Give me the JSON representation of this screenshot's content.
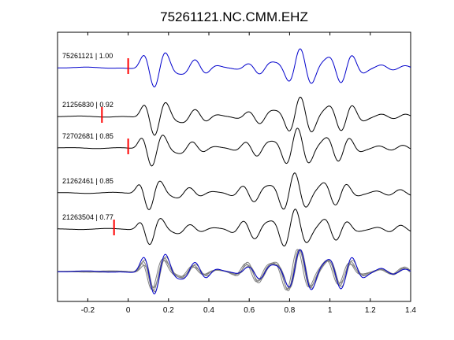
{
  "chart_data": {
    "type": "line",
    "title": "75261121.NC.CMM.EHZ",
    "xlabel": "",
    "ylabel": "",
    "xlim": [
      -0.35,
      1.4
    ],
    "xticks": [
      -0.2,
      0,
      0.2,
      0.4,
      0.6,
      0.8,
      1,
      1.2,
      1.4
    ],
    "xtick_labels": [
      "-0.2",
      "0",
      "0.2",
      "0.4",
      "0.6",
      "0.8",
      "1",
      "1.2",
      "1.4"
    ],
    "grid": false,
    "colors": {
      "master": "#0000cc",
      "trace": "#000000",
      "stack": "#808080",
      "pick": "#ff0000"
    },
    "traces": [
      {
        "label": "75261121 | 1.00",
        "pick": 0.0,
        "color_key": "master"
      },
      {
        "label": "21256830 | 0.92",
        "pick": -0.13,
        "color_key": "trace"
      },
      {
        "label": "72702681 | 0.85",
        "pick": 0.0,
        "color_key": "trace"
      },
      {
        "label": "21262461 | 0.85",
        "pick": null,
        "color_key": "trace"
      },
      {
        "label": "21263504 | 0.77",
        "pick": -0.07,
        "color_key": "trace"
      }
    ],
    "stack_label": ""
  }
}
